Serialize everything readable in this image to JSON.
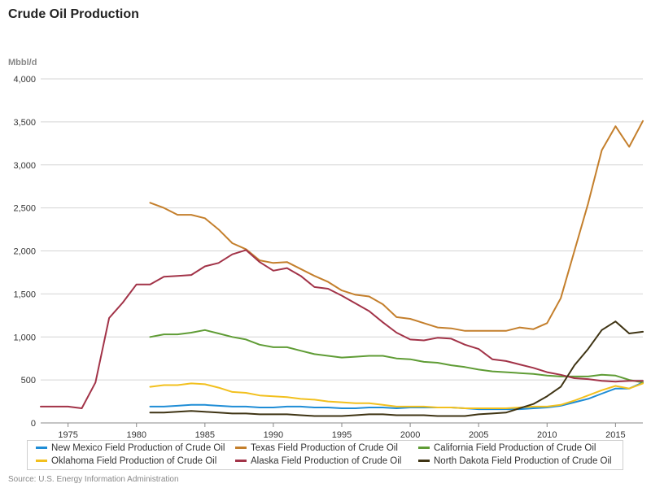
{
  "header": {
    "title": "Crude Oil Production",
    "unit": "Mbbl/d"
  },
  "source": "Source: U.S. Energy Information Administration",
  "chart_data": {
    "type": "line",
    "title": "Crude Oil Production",
    "ylabel": "Mbbl/d",
    "xlabel": "",
    "xlim": [
      1973,
      2017
    ],
    "ylim": [
      0,
      4000
    ],
    "yticks": [
      0,
      500,
      1000,
      1500,
      2000,
      2500,
      3000,
      3500,
      4000
    ],
    "ytick_labels": [
      "0",
      "500",
      "1,000",
      "1,500",
      "2,000",
      "2,500",
      "3,000",
      "3,500",
      "4,000"
    ],
    "xticks": [
      1975,
      1980,
      1985,
      1990,
      1995,
      2000,
      2005,
      2010,
      2015
    ],
    "grid": "horizontal",
    "legend_position": "bottom",
    "series": [
      {
        "name": "New Mexico Field Production of Crude Oil",
        "color": "#1f8dd6",
        "x": [
          1981,
          1982,
          1983,
          1984,
          1985,
          1986,
          1987,
          1988,
          1989,
          1990,
          1991,
          1992,
          1993,
          1994,
          1995,
          1996,
          1997,
          1998,
          1999,
          2000,
          2001,
          2002,
          2003,
          2004,
          2005,
          2006,
          2007,
          2008,
          2009,
          2010,
          2011,
          2012,
          2013,
          2014,
          2015,
          2016,
          2017
        ],
        "y": [
          190,
          190,
          200,
          210,
          210,
          200,
          190,
          190,
          180,
          180,
          190,
          190,
          180,
          180,
          170,
          170,
          180,
          180,
          170,
          180,
          180,
          180,
          180,
          170,
          160,
          160,
          160,
          160,
          170,
          180,
          200,
          240,
          280,
          340,
          400,
          400,
          470
        ]
      },
      {
        "name": "Texas Field Production of Crude Oil",
        "color": "#c47f2c",
        "x": [
          1981,
          1982,
          1983,
          1984,
          1985,
          1986,
          1987,
          1988,
          1989,
          1990,
          1991,
          1992,
          1993,
          1994,
          1995,
          1996,
          1997,
          1998,
          1999,
          2000,
          2001,
          2002,
          2003,
          2004,
          2005,
          2006,
          2007,
          2008,
          2009,
          2010,
          2011,
          2012,
          2013,
          2014,
          2015,
          2016,
          2017
        ],
        "y": [
          2560,
          2500,
          2420,
          2420,
          2380,
          2250,
          2090,
          2020,
          1890,
          1860,
          1870,
          1790,
          1710,
          1640,
          1540,
          1490,
          1470,
          1380,
          1230,
          1210,
          1160,
          1110,
          1100,
          1070,
          1070,
          1070,
          1070,
          1110,
          1090,
          1160,
          1450,
          2000,
          2550,
          3170,
          3450,
          3210,
          3510
        ]
      },
      {
        "name": "California Field Production of Crude Oil",
        "color": "#5f9c35",
        "x": [
          1981,
          1982,
          1983,
          1984,
          1985,
          1986,
          1987,
          1988,
          1989,
          1990,
          1991,
          1992,
          1993,
          1994,
          1995,
          1996,
          1997,
          1998,
          1999,
          2000,
          2001,
          2002,
          2003,
          2004,
          2005,
          2006,
          2007,
          2008,
          2009,
          2010,
          2011,
          2012,
          2013,
          2014,
          2015,
          2016,
          2017
        ],
        "y": [
          1000,
          1030,
          1030,
          1050,
          1080,
          1040,
          1000,
          970,
          910,
          880,
          880,
          840,
          800,
          780,
          760,
          770,
          780,
          780,
          750,
          740,
          710,
          700,
          670,
          650,
          620,
          600,
          590,
          580,
          570,
          550,
          540,
          540,
          540,
          560,
          550,
          500,
          470
        ]
      },
      {
        "name": "Oklahoma Field Production of Crude Oil",
        "color": "#f2c01e",
        "x": [
          1981,
          1982,
          1983,
          1984,
          1985,
          1986,
          1987,
          1988,
          1989,
          1990,
          1991,
          1992,
          1993,
          1994,
          1995,
          1996,
          1997,
          1998,
          1999,
          2000,
          2001,
          2002,
          2003,
          2004,
          2005,
          2006,
          2007,
          2008,
          2009,
          2010,
          2011,
          2012,
          2013,
          2014,
          2015,
          2016,
          2017
        ],
        "y": [
          420,
          440,
          440,
          460,
          450,
          410,
          360,
          350,
          320,
          310,
          300,
          280,
          270,
          250,
          240,
          230,
          230,
          210,
          190,
          190,
          190,
          180,
          180,
          170,
          170,
          170,
          170,
          180,
          190,
          190,
          210,
          260,
          320,
          380,
          430,
          400,
          460
        ]
      },
      {
        "name": "Alaska Field Production of Crude Oil",
        "color": "#a23348",
        "x": [
          1973,
          1974,
          1975,
          1976,
          1977,
          1978,
          1979,
          1980,
          1981,
          1982,
          1983,
          1984,
          1985,
          1986,
          1987,
          1988,
          1989,
          1990,
          1991,
          1992,
          1993,
          1994,
          1995,
          1996,
          1997,
          1998,
          1999,
          2000,
          2001,
          2002,
          2003,
          2004,
          2005,
          2006,
          2007,
          2008,
          2009,
          2010,
          2011,
          2012,
          2013,
          2014,
          2015,
          2016,
          2017
        ],
        "y": [
          190,
          190,
          190,
          170,
          470,
          1220,
          1400,
          1610,
          1610,
          1700,
          1710,
          1720,
          1820,
          1860,
          1960,
          2010,
          1870,
          1770,
          1800,
          1710,
          1580,
          1560,
          1480,
          1390,
          1300,
          1170,
          1050,
          970,
          960,
          990,
          980,
          910,
          860,
          740,
          720,
          680,
          640,
          590,
          560,
          520,
          510,
          490,
          480,
          490,
          490
        ]
      },
      {
        "name": "North Dakota Field Production of Crude Oil",
        "color": "#3f3414",
        "x": [
          1981,
          1982,
          1983,
          1984,
          1985,
          1986,
          1987,
          1988,
          1989,
          1990,
          1991,
          1992,
          1993,
          1994,
          1995,
          1996,
          1997,
          1998,
          1999,
          2000,
          2001,
          2002,
          2003,
          2004,
          2005,
          2006,
          2007,
          2008,
          2009,
          2010,
          2011,
          2012,
          2013,
          2014,
          2015,
          2016,
          2017
        ],
        "y": [
          120,
          120,
          130,
          140,
          130,
          120,
          110,
          110,
          100,
          100,
          100,
          90,
          80,
          80,
          80,
          90,
          100,
          100,
          90,
          90,
          90,
          80,
          80,
          80,
          100,
          110,
          120,
          170,
          220,
          310,
          420,
          670,
          860,
          1080,
          1180,
          1040,
          1060
        ]
      }
    ]
  }
}
